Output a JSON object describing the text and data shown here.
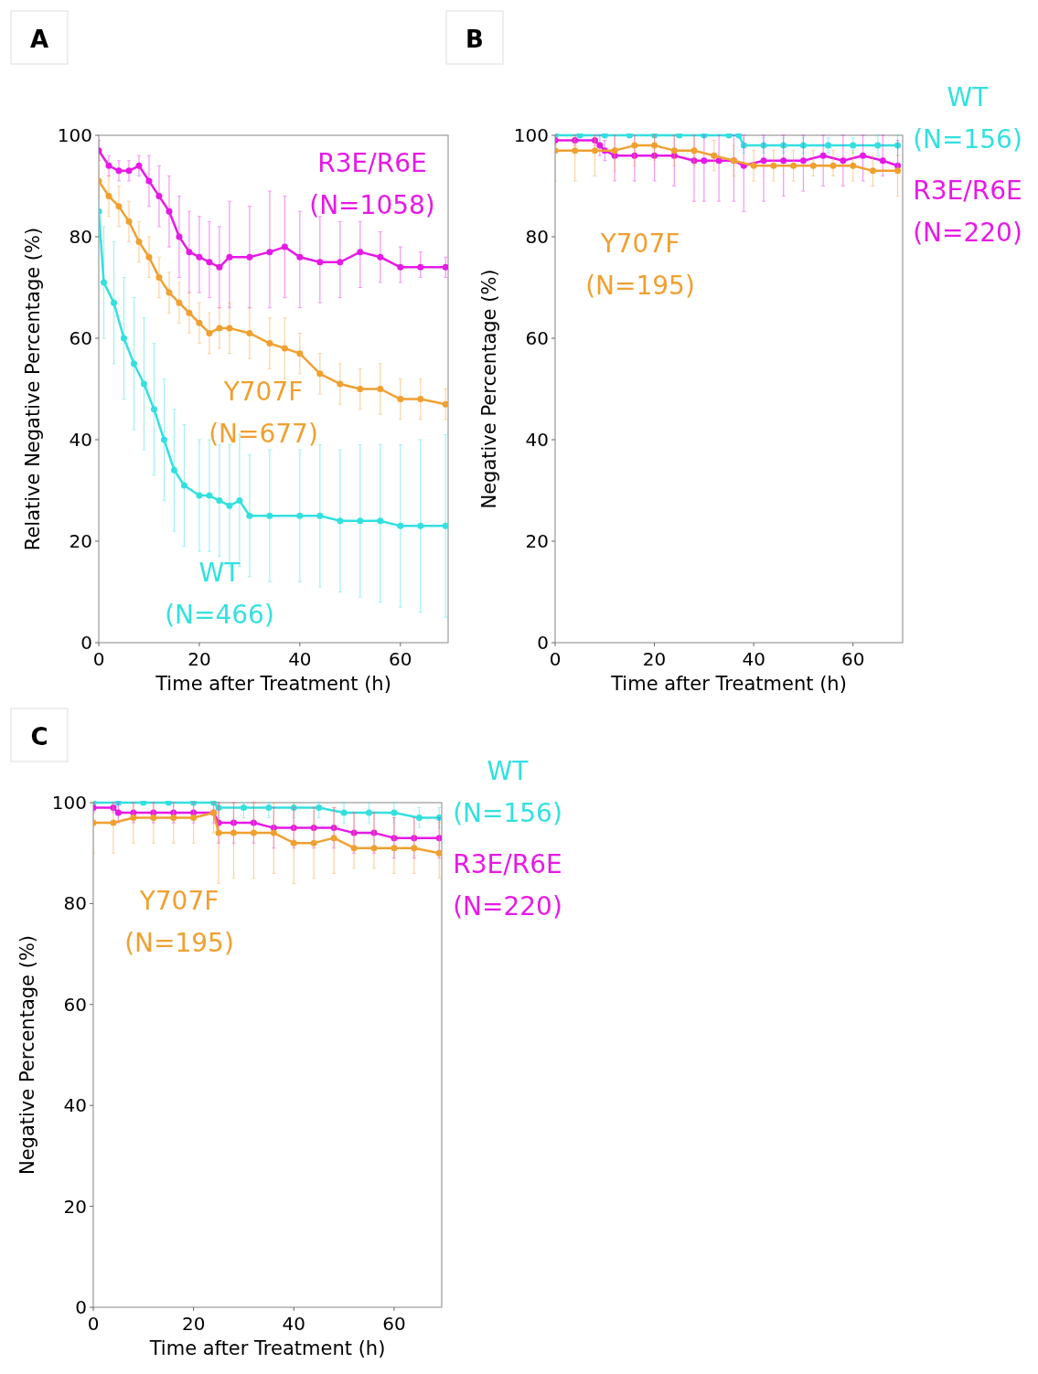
{
  "chart_data": [
    {
      "type": "line",
      "title": "A",
      "xlabel": "Time after Treatment (h)",
      "ylabel": "Relative Negative Percentage (%)",
      "xlim": [
        0,
        69.5
      ],
      "xticks": [
        0,
        20,
        40,
        60
      ],
      "ylim": [
        0,
        100
      ],
      "yticks": [
        0,
        20,
        40,
        60,
        80,
        100
      ],
      "marker": "circle",
      "series": [
        {
          "name": "R3E/R6E (N=1058)",
          "color": "#e619e6",
          "x": [
            0,
            2,
            4,
            6,
            8,
            10,
            12,
            14,
            16,
            18,
            20,
            22,
            24,
            26,
            30,
            34,
            37,
            40,
            44,
            48,
            52,
            56,
            60,
            64,
            69
          ],
          "values": [
            97,
            94,
            93,
            93,
            94,
            91,
            88,
            85,
            80,
            77,
            76,
            75,
            74,
            76,
            76,
            77,
            78,
            76,
            75,
            75,
            77,
            76,
            74,
            74,
            74
          ],
          "errors": [
            [
              95,
              99
            ],
            [
              92,
              96
            ],
            [
              91,
              95
            ],
            [
              91,
              95
            ],
            [
              92,
              96
            ],
            [
              86,
              96
            ],
            [
              82,
              94
            ],
            [
              78,
              92
            ],
            [
              72,
              88
            ],
            [
              69,
              85
            ],
            [
              69,
              84
            ],
            [
              68,
              83
            ],
            [
              66,
              82
            ],
            [
              66,
              87
            ],
            [
              66,
              86
            ],
            [
              66,
              89
            ],
            [
              68,
              88
            ],
            [
              66,
              85
            ],
            [
              67,
              84
            ],
            [
              68,
              83
            ],
            [
              70,
              83
            ],
            [
              71,
              81
            ],
            [
              71,
              78
            ],
            [
              72,
              77
            ],
            [
              72,
              76
            ]
          ]
        },
        {
          "name": "Y707F (N=677)",
          "color": "#f0a030",
          "x": [
            0,
            2,
            4,
            6,
            8,
            10,
            12,
            14,
            16,
            18,
            20,
            22,
            24,
            26,
            30,
            34,
            37,
            40,
            44,
            48,
            52,
            56,
            60,
            64,
            69
          ],
          "values": [
            91,
            88,
            86,
            83,
            79,
            76,
            72,
            69,
            67,
            65,
            63,
            61,
            62,
            62,
            61,
            59,
            58,
            57,
            53,
            51,
            50,
            50,
            48,
            48,
            47
          ],
          "errors": [
            [
              88,
              94
            ],
            [
              84,
              92
            ],
            [
              82,
              90
            ],
            [
              79,
              87
            ],
            [
              75,
              83
            ],
            [
              72,
              80
            ],
            [
              68,
              76
            ],
            [
              65,
              73
            ],
            [
              63,
              71
            ],
            [
              61,
              69
            ],
            [
              59,
              67
            ],
            [
              57,
              65
            ],
            [
              58,
              66
            ],
            [
              57,
              67
            ],
            [
              56,
              66
            ],
            [
              54,
              64
            ],
            [
              52,
              64
            ],
            [
              53,
              61
            ],
            [
              49,
              57
            ],
            [
              47,
              55
            ],
            [
              46,
              54
            ],
            [
              45,
              55
            ],
            [
              44,
              52
            ],
            [
              44,
              52
            ],
            [
              44,
              50
            ]
          ]
        },
        {
          "name": "WT (N=466)",
          "color": "#33e0e0",
          "x": [
            0,
            1,
            3,
            5,
            7,
            9,
            11,
            13,
            15,
            17,
            20,
            22,
            24,
            26,
            28,
            30,
            34,
            40,
            44,
            48,
            52,
            56,
            60,
            64,
            69
          ],
          "values": [
            85,
            71,
            67,
            60,
            55,
            51,
            46,
            40,
            34,
            31,
            29,
            29,
            28,
            27,
            28,
            25,
            25,
            25,
            25,
            24,
            24,
            24,
            23,
            23,
            23
          ],
          "errors": [
            [
              80,
              90
            ],
            [
              60,
              82
            ],
            [
              55,
              79
            ],
            [
              48,
              72
            ],
            [
              42,
              68
            ],
            [
              38,
              64
            ],
            [
              33,
              59
            ],
            [
              28,
              52
            ],
            [
              22,
              46
            ],
            [
              19,
              43
            ],
            [
              18,
              40
            ],
            [
              18,
              40
            ],
            [
              17,
              39
            ],
            [
              15,
              39
            ],
            [
              15,
              41
            ],
            [
              13,
              37
            ],
            [
              12,
              38
            ],
            [
              12,
              38
            ],
            [
              11,
              39
            ],
            [
              10,
              38
            ],
            [
              9,
              39
            ],
            [
              8,
              39
            ],
            [
              7,
              39
            ],
            [
              6,
              40
            ],
            [
              5,
              41
            ]
          ]
        }
      ]
    },
    {
      "type": "line",
      "title": "B",
      "xlabel": "Time after Treatment (h)",
      "ylabel": "Negative Percentage (%)",
      "xlim": [
        0,
        70
      ],
      "xticks": [
        0,
        20,
        40,
        60
      ],
      "ylim": [
        0,
        100
      ],
      "yticks": [
        0,
        20,
        40,
        60,
        80,
        100
      ],
      "marker": "circle",
      "series": [
        {
          "name": "WT (N=156)",
          "color": "#33e0e0",
          "x": [
            0,
            5,
            10,
            15,
            20,
            25,
            30,
            35,
            37,
            38,
            42,
            46,
            50,
            55,
            60,
            65,
            69
          ],
          "values": [
            100,
            100,
            100,
            100,
            100,
            100,
            100,
            100,
            100,
            98,
            98,
            98,
            98,
            98,
            98,
            98,
            98
          ],
          "errors": [
            null,
            null,
            null,
            null,
            null,
            null,
            null,
            null,
            null,
            [
              96.5,
              99.5
            ],
            [
              96.5,
              99.5
            ],
            [
              96.5,
              99.5
            ],
            [
              96.5,
              99.5
            ],
            [
              96.5,
              99.5
            ],
            [
              96.5,
              99.5
            ],
            [
              96,
              100
            ],
            [
              96,
              100
            ]
          ]
        },
        {
          "name": "R3E/R6E (N=220)",
          "color": "#e619e6",
          "x": [
            0,
            4,
            8,
            9,
            10,
            12,
            16,
            20,
            24,
            28,
            30,
            33,
            36,
            38,
            42,
            46,
            50,
            54,
            58,
            62,
            66,
            69
          ],
          "values": [
            99,
            99,
            99,
            98,
            97,
            96,
            96,
            96,
            96,
            95,
            95,
            95,
            95,
            94,
            95,
            95,
            95,
            96,
            95,
            96,
            95,
            94
          ],
          "errors": [
            [
              98,
              100
            ],
            [
              98,
              100
            ],
            [
              98,
              100
            ],
            [
              96,
              100
            ],
            [
              95,
              99
            ],
            [
              91,
              100
            ],
            [
              91,
              100
            ],
            [
              91,
              100
            ],
            [
              90,
              100
            ],
            [
              87,
              100
            ],
            [
              87,
              100
            ],
            [
              87,
              100
            ],
            [
              87,
              100
            ],
            [
              85,
              100
            ],
            [
              87,
              100
            ],
            [
              88,
              100
            ],
            [
              89,
              100
            ],
            [
              90,
              100
            ],
            [
              90,
              100
            ],
            [
              91,
              100
            ],
            [
              92,
              100
            ],
            [
              93,
              99
            ]
          ]
        },
        {
          "name": "Y707F (N=195)",
          "color": "#f0a030",
          "x": [
            0,
            4,
            8,
            12,
            16,
            20,
            24,
            28,
            32,
            36,
            40,
            44,
            48,
            52,
            56,
            60,
            64,
            69
          ],
          "values": [
            97,
            97,
            97,
            97,
            98,
            98,
            97,
            97,
            96,
            95,
            94,
            94,
            94,
            94,
            94,
            94,
            93,
            93
          ],
          "errors": [
            [
              91,
              100
            ],
            [
              91,
              100
            ],
            [
              92,
              100
            ],
            [
              93,
              100
            ],
            [
              94,
              100
            ],
            [
              95,
              100
            ],
            [
              94,
              100
            ],
            [
              94,
              100
            ],
            [
              93,
              99
            ],
            [
              92,
              98
            ],
            [
              91,
              97
            ],
            [
              91,
              97
            ],
            [
              91,
              97
            ],
            [
              92,
              97
            ],
            [
              92,
              97
            ],
            [
              91,
              97
            ],
            [
              90,
              96
            ],
            [
              88,
              96
            ]
          ]
        }
      ]
    },
    {
      "type": "line",
      "title": "C",
      "xlabel": "Time after Treatment (h)",
      "ylabel": "Negative Percentage (%)",
      "xlim": [
        0,
        69.5
      ],
      "xticks": [
        0,
        20,
        40,
        60
      ],
      "ylim": [
        0,
        100
      ],
      "yticks": [
        0,
        20,
        40,
        60,
        80,
        100
      ],
      "marker": "circle",
      "series": [
        {
          "name": "WT (N=156)",
          "color": "#33e0e0",
          "x": [
            0,
            5,
            10,
            15,
            20,
            24,
            25,
            30,
            35,
            40,
            45,
            50,
            55,
            60,
            65,
            69
          ],
          "values": [
            100,
            100,
            100,
            100,
            100,
            100,
            99,
            99,
            99,
            99,
            99,
            98,
            98,
            98,
            97,
            97
          ],
          "errors": [
            null,
            null,
            null,
            null,
            null,
            null,
            [
              97,
              100
            ],
            [
              97,
              100
            ],
            [
              97,
              100
            ],
            [
              97,
              100
            ],
            [
              97,
              100
            ],
            [
              96,
              100
            ],
            [
              96,
              100
            ],
            [
              96,
              100
            ],
            [
              95,
              99
            ],
            [
              95,
              99
            ]
          ]
        },
        {
          "name": "R3E/R6E (N=220)",
          "color": "#e619e6",
          "x": [
            0,
            4,
            5,
            8,
            12,
            16,
            20,
            24,
            25,
            28,
            32,
            36,
            40,
            44,
            48,
            52,
            56,
            60,
            64,
            69
          ],
          "values": [
            99,
            99,
            98,
            98,
            98,
            98,
            98,
            98,
            96,
            96,
            96,
            95,
            95,
            95,
            95,
            94,
            94,
            93,
            93,
            93
          ],
          "errors": [
            [
              98,
              100
            ],
            [
              98,
              100
            ],
            [
              96,
              100
            ],
            [
              96,
              100
            ],
            [
              96,
              100
            ],
            [
              96,
              100
            ],
            [
              96,
              100
            ],
            [
              96,
              100
            ],
            [
              92,
              100
            ],
            [
              92,
              100
            ],
            [
              92,
              100
            ],
            [
              91,
              99
            ],
            [
              91,
              99
            ],
            [
              91,
              99
            ],
            [
              91,
              99
            ],
            [
              90,
              98
            ],
            [
              90,
              98
            ],
            [
              89,
              97
            ],
            [
              89,
              97
            ],
            [
              89,
              97
            ]
          ]
        },
        {
          "name": "Y707F (N=195)",
          "color": "#f0a030",
          "x": [
            0,
            4,
            8,
            12,
            16,
            20,
            24,
            25,
            28,
            32,
            36,
            40,
            44,
            48,
            52,
            56,
            60,
            64,
            69
          ],
          "values": [
            96,
            96,
            97,
            97,
            97,
            97,
            98,
            94,
            94,
            94,
            94,
            92,
            92,
            93,
            91,
            91,
            91,
            91,
            90
          ],
          "errors": [
            [
              90,
              100
            ],
            [
              90,
              100
            ],
            [
              92,
              100
            ],
            [
              92,
              100
            ],
            [
              92,
              100
            ],
            [
              92,
              100
            ],
            [
              94,
              100
            ],
            [
              84,
              100
            ],
            [
              85,
              100
            ],
            [
              85,
              100
            ],
            [
              86,
              100
            ],
            [
              84,
              100
            ],
            [
              85,
              99
            ],
            [
              86,
              99
            ],
            [
              87,
              98
            ],
            [
              87,
              98
            ],
            [
              86,
              97
            ],
            [
              86,
              97
            ],
            [
              85,
              96
            ]
          ]
        }
      ]
    }
  ]
}
